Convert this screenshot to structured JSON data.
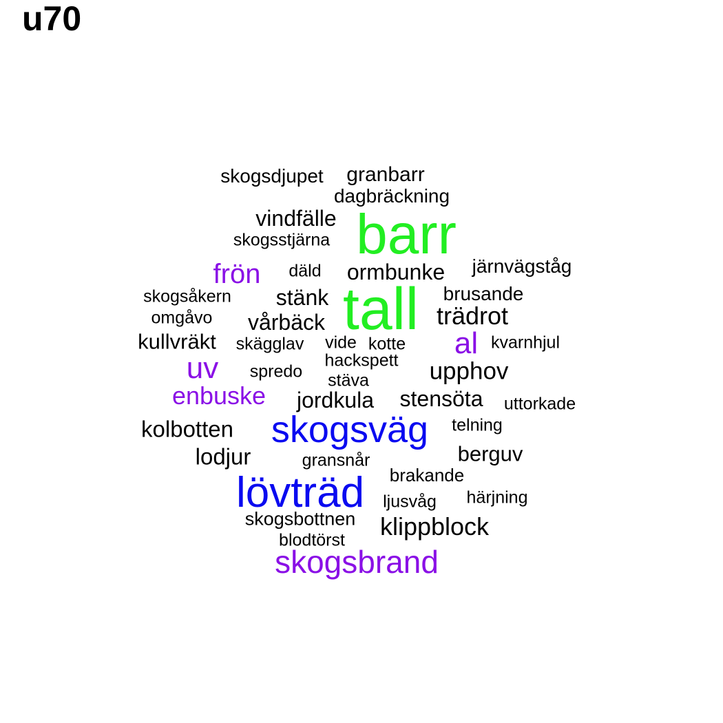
{
  "title": "u70",
  "colors": {
    "green": "#22ee22",
    "blue": "#0a0af0",
    "purple": "#8a10e6",
    "black": "#000000"
  },
  "words": [
    {
      "text": "barr",
      "weight": 5,
      "color": "green"
    },
    {
      "text": "tall",
      "weight": 5,
      "color": "green"
    },
    {
      "text": "skogsväg",
      "weight": 4,
      "color": "blue"
    },
    {
      "text": "lövträd",
      "weight": 4,
      "color": "blue"
    },
    {
      "text": "skogsbrand",
      "weight": 3,
      "color": "purple"
    },
    {
      "text": "enbuske",
      "weight": 3,
      "color": "purple"
    },
    {
      "text": "frön",
      "weight": 3,
      "color": "purple"
    },
    {
      "text": "uv",
      "weight": 3,
      "color": "purple"
    },
    {
      "text": "al",
      "weight": 3,
      "color": "purple"
    },
    {
      "text": "skogsdjupet",
      "weight": 1,
      "color": "black"
    },
    {
      "text": "granbarr",
      "weight": 1,
      "color": "black"
    },
    {
      "text": "dagbräckning",
      "weight": 1,
      "color": "black"
    },
    {
      "text": "vindfälle",
      "weight": 2,
      "color": "black"
    },
    {
      "text": "skogsstjärna",
      "weight": 1,
      "color": "black"
    },
    {
      "text": "däld",
      "weight": 1,
      "color": "black"
    },
    {
      "text": "ormbunke",
      "weight": 2,
      "color": "black"
    },
    {
      "text": "järnvägståg",
      "weight": 1,
      "color": "black"
    },
    {
      "text": "skogsåkern",
      "weight": 1,
      "color": "black"
    },
    {
      "text": "stänk",
      "weight": 2,
      "color": "black"
    },
    {
      "text": "brusande",
      "weight": 1,
      "color": "black"
    },
    {
      "text": "omgåvo",
      "weight": 1,
      "color": "black"
    },
    {
      "text": "vårbäck",
      "weight": 2,
      "color": "black"
    },
    {
      "text": "trädrot",
      "weight": 2,
      "color": "black"
    },
    {
      "text": "kullvräkt",
      "weight": 2,
      "color": "black"
    },
    {
      "text": "skägglav",
      "weight": 1,
      "color": "black"
    },
    {
      "text": "vide",
      "weight": 1,
      "color": "black"
    },
    {
      "text": "kotte",
      "weight": 1,
      "color": "black"
    },
    {
      "text": "kvarnhjul",
      "weight": 1,
      "color": "black"
    },
    {
      "text": "hackspett",
      "weight": 1,
      "color": "black"
    },
    {
      "text": "spredo",
      "weight": 1,
      "color": "black"
    },
    {
      "text": "upphov",
      "weight": 2,
      "color": "black"
    },
    {
      "text": "stäva",
      "weight": 1,
      "color": "black"
    },
    {
      "text": "jordkula",
      "weight": 2,
      "color": "black"
    },
    {
      "text": "stensöta",
      "weight": 2,
      "color": "black"
    },
    {
      "text": "uttorkade",
      "weight": 1,
      "color": "black"
    },
    {
      "text": "kolbotten",
      "weight": 2,
      "color": "black"
    },
    {
      "text": "telning",
      "weight": 1,
      "color": "black"
    },
    {
      "text": "lodjur",
      "weight": 2,
      "color": "black"
    },
    {
      "text": "gransnår",
      "weight": 1,
      "color": "black"
    },
    {
      "text": "berguv",
      "weight": 2,
      "color": "black"
    },
    {
      "text": "brakande",
      "weight": 1,
      "color": "black"
    },
    {
      "text": "härjning",
      "weight": 1,
      "color": "black"
    },
    {
      "text": "ljusvåg",
      "weight": 1,
      "color": "black"
    },
    {
      "text": "skogsbottnen",
      "weight": 1,
      "color": "black"
    },
    {
      "text": "klippblock",
      "weight": 2,
      "color": "black"
    },
    {
      "text": "blodtörst",
      "weight": 1,
      "color": "black"
    }
  ]
}
